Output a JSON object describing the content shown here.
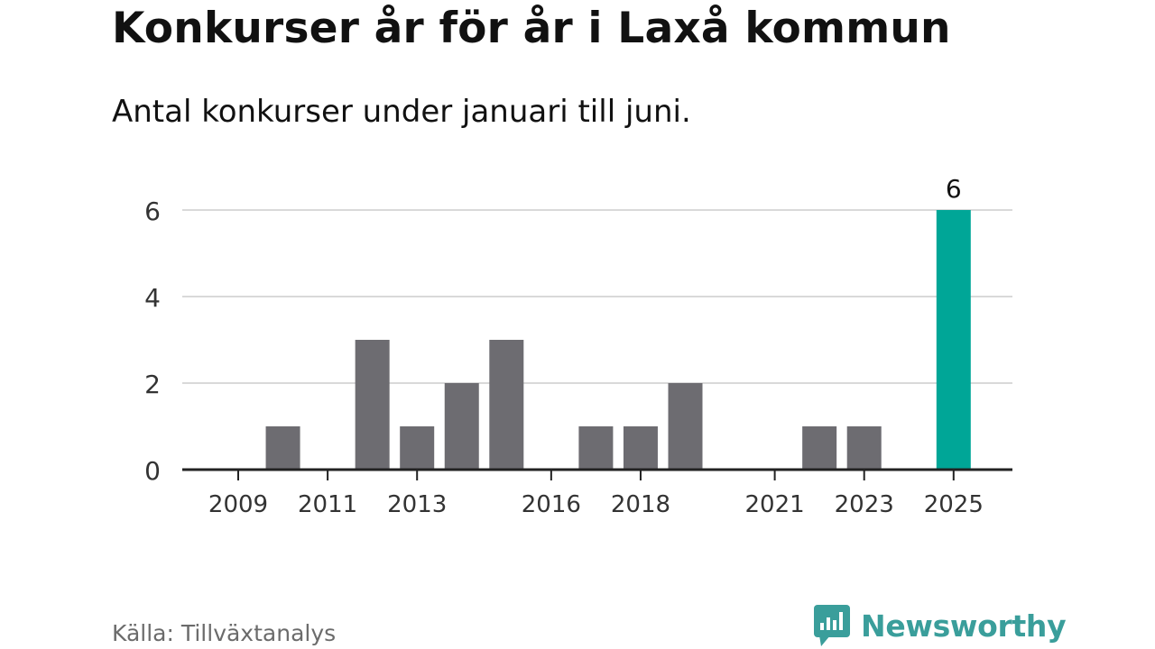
{
  "title": "Konkurser år för år i Laxå kommun",
  "subtitle": "Antal konkurser under januari till juni.",
  "source": "Källa: Tillväxtanalys",
  "brand": {
    "name": "Newsworthy",
    "icon": "newsworthy-logo-icon",
    "color": "#3a9e9b"
  },
  "colors": {
    "bar": "#6d6c71",
    "highlight": "#00a697",
    "grid": "#d9d9d9",
    "axis": "#222222",
    "tick_text": "#333333"
  },
  "chart_data": {
    "type": "bar",
    "categories": [
      "2009",
      "2010",
      "2011",
      "2012",
      "2013",
      "2014",
      "2015",
      "2016",
      "2017",
      "2018",
      "2019",
      "2020",
      "2021",
      "2022",
      "2023",
      "2024",
      "2025"
    ],
    "values": [
      0,
      1,
      0,
      3,
      1,
      2,
      3,
      0,
      1,
      1,
      2,
      0,
      0,
      1,
      1,
      0,
      6
    ],
    "x_tick_labels": [
      "2009",
      "2011",
      "2013",
      "2016",
      "2018",
      "2021",
      "2023",
      "2025"
    ],
    "y_ticks": [
      0,
      2,
      4,
      6
    ],
    "ylim": [
      0,
      6
    ],
    "highlight": {
      "category": "2025",
      "label": "6"
    },
    "grid": true,
    "xlabel": "",
    "ylabel": ""
  }
}
